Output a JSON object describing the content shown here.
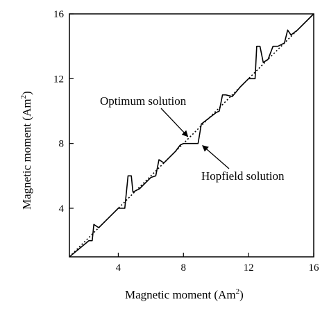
{
  "chart_data": {
    "type": "line",
    "xlabel": "Magnetic moment (Am",
    "ylabel": "Magnetic moment (Am",
    "label_exponent": "2",
    "label_close": ")",
    "xlim": [
      1,
      16
    ],
    "ylim": [
      1,
      16
    ],
    "xticks": [
      4,
      8,
      12,
      16
    ],
    "yticks": [
      4,
      8,
      12,
      16
    ],
    "xtick_labels": [
      "4",
      "8",
      "12",
      "16"
    ],
    "ytick_labels": [
      "4",
      "8",
      "12",
      "16"
    ],
    "grid": false,
    "series": [
      {
        "style": "dotted",
        "points": [
          [
            1,
            1
          ],
          [
            16,
            16
          ]
        ]
      },
      {
        "style": "solid",
        "points": [
          [
            1,
            1
          ],
          [
            2.2,
            2
          ],
          [
            2.4,
            2
          ],
          [
            2.5,
            3
          ],
          [
            2.8,
            2.8
          ],
          [
            3.5,
            3.5
          ],
          [
            4.0,
            4.0
          ],
          [
            4.4,
            4.0
          ],
          [
            4.6,
            6.0
          ],
          [
            4.8,
            6.0
          ],
          [
            4.9,
            5.0
          ],
          [
            5.3,
            5.2
          ],
          [
            6.0,
            5.9
          ],
          [
            6.3,
            6.0
          ],
          [
            6.5,
            7.0
          ],
          [
            6.8,
            6.8
          ],
          [
            7.5,
            7.5
          ],
          [
            7.8,
            7.9
          ],
          [
            8.0,
            8.0
          ],
          [
            8.9,
            8.0
          ],
          [
            9.1,
            9.2
          ],
          [
            10.0,
            9.9
          ],
          [
            10.2,
            10.0
          ],
          [
            10.4,
            11.0
          ],
          [
            10.6,
            11.0
          ],
          [
            11.0,
            10.9
          ],
          [
            11.5,
            11.5
          ],
          [
            12.0,
            12.0
          ],
          [
            12.4,
            12.0
          ],
          [
            12.5,
            14.0
          ],
          [
            12.7,
            14.0
          ],
          [
            12.9,
            13.0
          ],
          [
            13.2,
            13.2
          ],
          [
            13.5,
            14.0
          ],
          [
            13.8,
            14.0
          ],
          [
            14.2,
            14.2
          ],
          [
            14.4,
            15.0
          ],
          [
            14.6,
            14.7
          ],
          [
            15.0,
            15.0
          ],
          [
            16,
            16
          ]
        ]
      }
    ],
    "annotations": [
      {
        "text": "Optimum solution",
        "target": [
          8.1,
          8.3
        ]
      },
      {
        "text": "Hopfield solution",
        "target": [
          9.0,
          8.0
        ]
      }
    ]
  }
}
